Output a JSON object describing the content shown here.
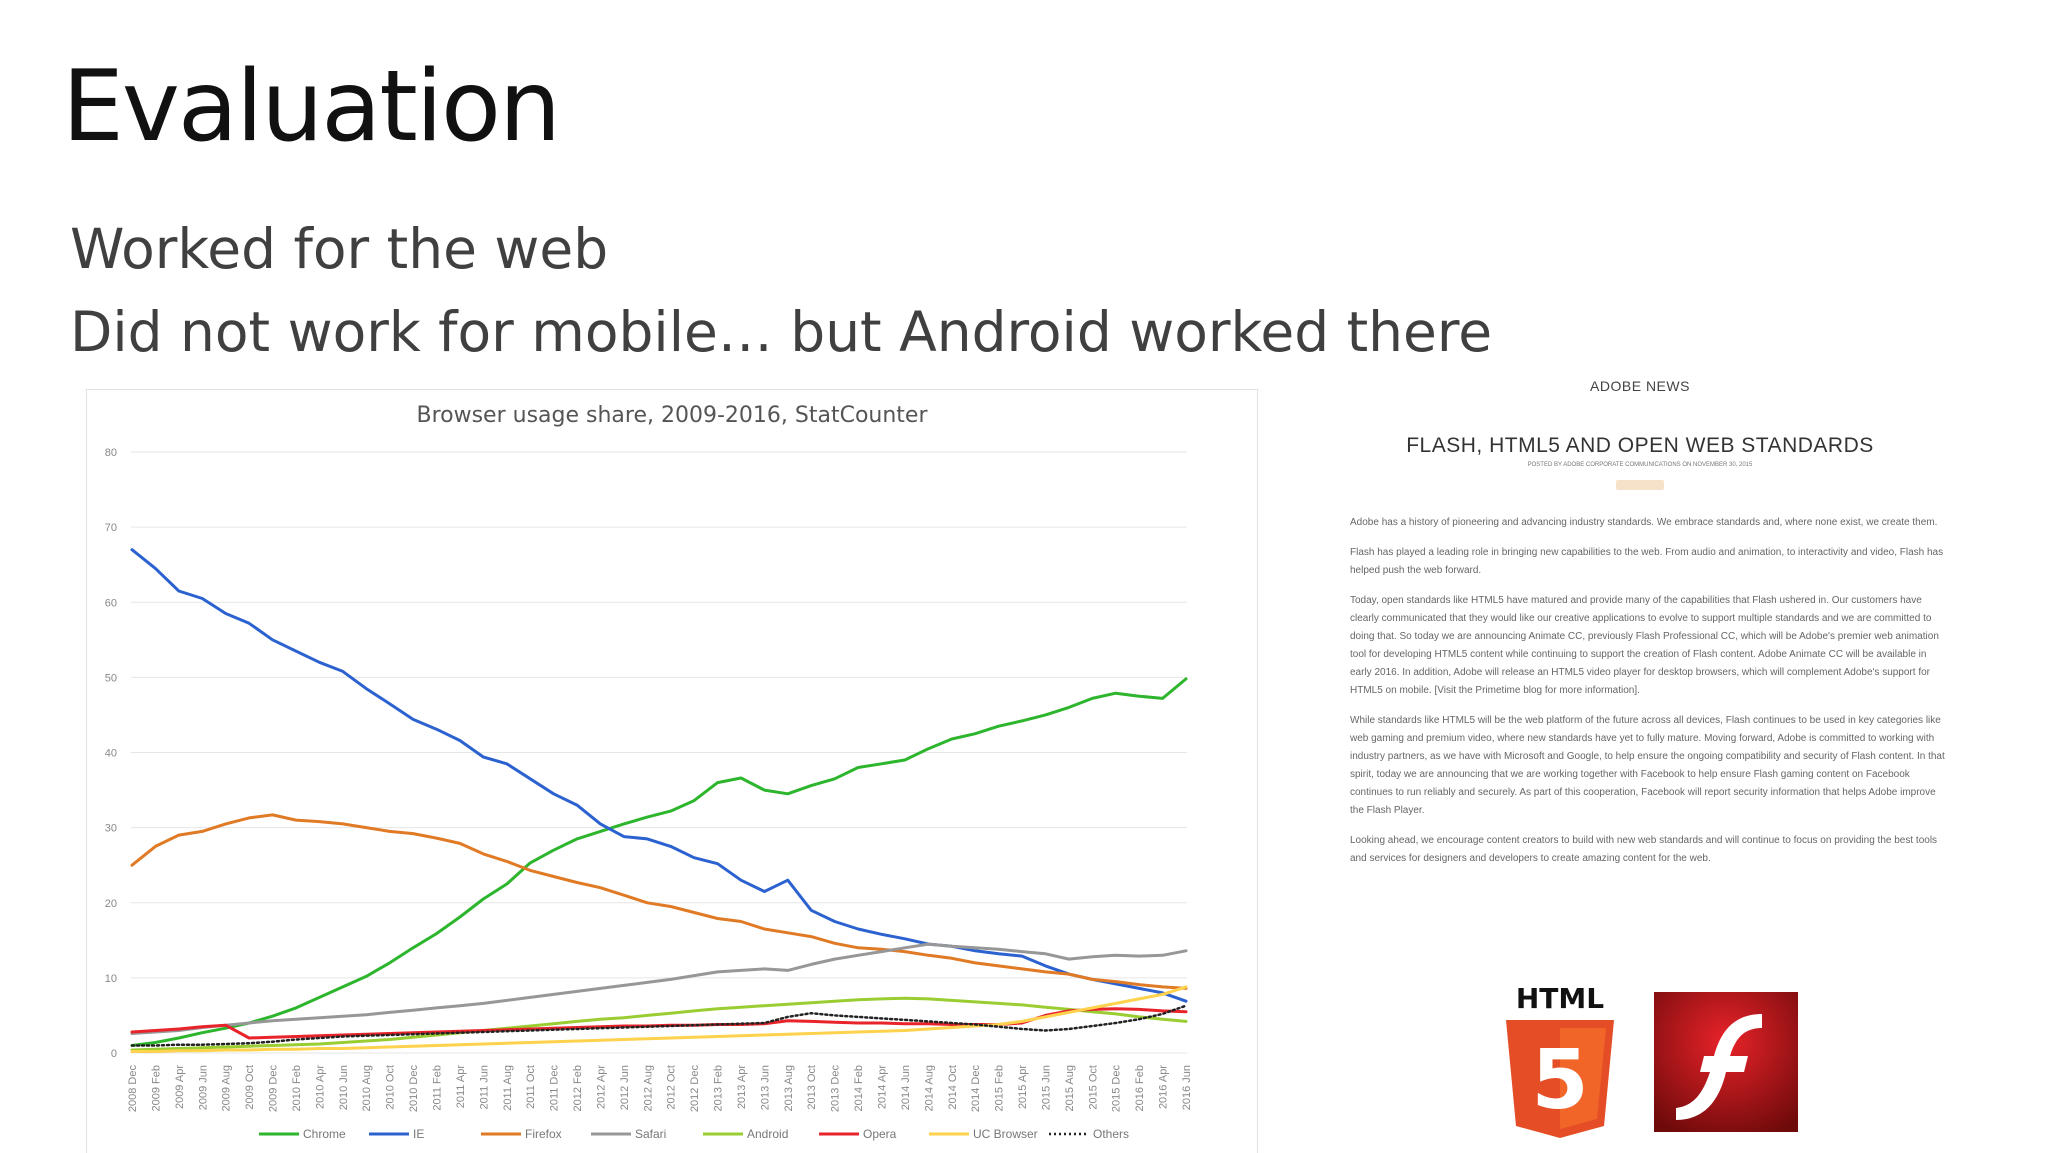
{
  "slide": {
    "title": "Evaluation",
    "bullets": [
      "Worked for the web",
      "Did not work for mobile… but Android worked there"
    ]
  },
  "chart_data": {
    "type": "line",
    "title": "Browser usage share, 2009-2016, StatCounter",
    "ylim": [
      0,
      80
    ],
    "y_ticks": [
      0,
      10,
      20,
      30,
      40,
      50,
      60,
      70,
      80
    ],
    "grid": true,
    "legend_position": "bottom",
    "x": [
      "2008 Dec",
      "2009 Feb",
      "2009 Apr",
      "2009 Jun",
      "2009 Aug",
      "2009 Oct",
      "2009 Dec",
      "2010 Feb",
      "2010 Apr",
      "2010 Jun",
      "2010 Aug",
      "2010 Oct",
      "2010 Dec",
      "2011 Feb",
      "2011 Apr",
      "2011 Jun",
      "2011 Aug",
      "2011 Oct",
      "2011 Dec",
      "2012 Feb",
      "2012 Apr",
      "2012 Jun",
      "2012 Aug",
      "2012 Oct",
      "2012 Dec",
      "2013 Feb",
      "2013 Apr",
      "2013 Jun",
      "2013 Aug",
      "2013 Oct",
      "2013 Dec",
      "2014 Feb",
      "2014 Apr",
      "2014 Jun",
      "2014 Aug",
      "2014 Oct",
      "2014 Dec",
      "2015 Feb",
      "2015 Apr",
      "2015 Jun",
      "2015 Aug",
      "2015 Oct",
      "2015 Dec",
      "2016 Feb",
      "2016 Apr",
      "2016 Jun"
    ],
    "series": [
      {
        "name": "Chrome",
        "color": "#2db52d",
        "dashed": false,
        "values": [
          1.0,
          1.4,
          2.0,
          2.7,
          3.3,
          4.0,
          4.9,
          6.0,
          7.4,
          8.8,
          10.2,
          12.0,
          14.0,
          15.9,
          18.1,
          20.5,
          22.5,
          25.3,
          27.0,
          28.5,
          29.5,
          30.5,
          31.4,
          32.2,
          33.6,
          36.0,
          36.6,
          35.0,
          34.5,
          35.6,
          36.5,
          38.0,
          38.5,
          39.0,
          40.5,
          41.8,
          42.5,
          43.5,
          44.2,
          45.0,
          46.0,
          47.2,
          47.9,
          47.5,
          47.2,
          49.8
        ]
      },
      {
        "name": "IE",
        "color": "#2c62d0",
        "dashed": false,
        "values": [
          67.0,
          64.5,
          61.5,
          60.5,
          58.5,
          57.2,
          55.0,
          53.5,
          52.0,
          50.8,
          48.5,
          46.5,
          44.4,
          43.1,
          41.6,
          39.4,
          38.5,
          36.5,
          34.5,
          33.0,
          30.5,
          28.8,
          28.5,
          27.5,
          26.0,
          25.2,
          23.0,
          21.5,
          23.0,
          19.0,
          17.5,
          16.5,
          15.8,
          15.2,
          14.5,
          14.2,
          13.6,
          13.2,
          12.9,
          11.6,
          10.5,
          9.8,
          9.2,
          8.6,
          8.0,
          6.9
        ]
      },
      {
        "name": "Firefox",
        "color": "#e07a25",
        "dashed": false,
        "values": [
          25.0,
          27.5,
          29.0,
          29.5,
          30.5,
          31.3,
          31.7,
          31.0,
          30.8,
          30.5,
          30.0,
          29.5,
          29.2,
          28.6,
          27.9,
          26.5,
          25.5,
          24.3,
          23.5,
          22.7,
          22.0,
          21.0,
          20.0,
          19.5,
          18.7,
          17.9,
          17.5,
          16.5,
          16.0,
          15.5,
          14.6,
          14.0,
          13.8,
          13.5,
          13.0,
          12.6,
          12.0,
          11.6,
          11.2,
          10.8,
          10.5,
          9.8,
          9.5,
          9.1,
          8.8,
          8.6
        ]
      },
      {
        "name": "Safari",
        "color": "#979797",
        "dashed": false,
        "values": [
          2.6,
          2.8,
          3.0,
          3.4,
          3.7,
          4.0,
          4.3,
          4.5,
          4.7,
          4.9,
          5.1,
          5.4,
          5.7,
          6.0,
          6.3,
          6.6,
          7.0,
          7.4,
          7.8,
          8.2,
          8.6,
          9.0,
          9.4,
          9.8,
          10.3,
          10.8,
          11.0,
          11.2,
          11.0,
          11.8,
          12.5,
          13.0,
          13.5,
          14.0,
          14.5,
          14.2,
          14.0,
          13.8,
          13.5,
          13.2,
          12.5,
          12.8,
          13.0,
          12.9,
          13.0,
          13.6
        ]
      },
      {
        "name": "Android",
        "color": "#9acd32",
        "dashed": false,
        "values": [
          0.4,
          0.5,
          0.6,
          0.7,
          0.8,
          0.9,
          1.0,
          1.1,
          1.2,
          1.4,
          1.6,
          1.8,
          2.1,
          2.4,
          2.7,
          3.0,
          3.3,
          3.6,
          3.9,
          4.2,
          4.5,
          4.7,
          5.0,
          5.3,
          5.6,
          5.9,
          6.1,
          6.3,
          6.5,
          6.7,
          6.9,
          7.1,
          7.2,
          7.3,
          7.2,
          7.0,
          6.8,
          6.6,
          6.4,
          6.1,
          5.8,
          5.5,
          5.2,
          4.8,
          4.5,
          4.2
        ]
      },
      {
        "name": "Opera",
        "color": "#e8232a",
        "dashed": false,
        "values": [
          2.8,
          3.0,
          3.2,
          3.5,
          3.7,
          2.0,
          2.1,
          2.2,
          2.3,
          2.4,
          2.5,
          2.6,
          2.7,
          2.8,
          2.9,
          3.0,
          3.1,
          3.2,
          3.3,
          3.4,
          3.5,
          3.6,
          3.6,
          3.7,
          3.7,
          3.8,
          3.8,
          3.9,
          4.3,
          4.2,
          4.1,
          4.0,
          4.0,
          3.9,
          3.9,
          3.8,
          3.8,
          3.8,
          4.0,
          5.0,
          5.6,
          5.8,
          5.9,
          5.8,
          5.6,
          5.5
        ]
      },
      {
        "name": "UC Browser",
        "color": "#ffd24d",
        "dashed": false,
        "values": [
          0.2,
          0.2,
          0.3,
          0.3,
          0.4,
          0.4,
          0.5,
          0.5,
          0.6,
          0.6,
          0.7,
          0.8,
          0.9,
          1.0,
          1.1,
          1.2,
          1.3,
          1.4,
          1.5,
          1.6,
          1.7,
          1.8,
          1.9,
          2.0,
          2.1,
          2.2,
          2.3,
          2.4,
          2.5,
          2.6,
          2.7,
          2.8,
          2.9,
          3.0,
          3.2,
          3.4,
          3.6,
          3.8,
          4.2,
          4.8,
          5.4,
          6.0,
          6.6,
          7.2,
          7.8,
          8.8
        ]
      },
      {
        "name": "Others",
        "color": "#222222",
        "dashed": true,
        "values": [
          1.0,
          1.0,
          1.1,
          1.1,
          1.2,
          1.3,
          1.5,
          1.8,
          2.0,
          2.2,
          2.3,
          2.4,
          2.5,
          2.6,
          2.7,
          2.8,
          2.9,
          3.0,
          3.1,
          3.2,
          3.3,
          3.4,
          3.5,
          3.6,
          3.7,
          3.8,
          3.9,
          4.0,
          4.8,
          5.3,
          5.0,
          4.8,
          4.6,
          4.4,
          4.2,
          4.0,
          3.8,
          3.5,
          3.2,
          3.0,
          3.2,
          3.6,
          4.0,
          4.5,
          5.2,
          6.3
        ]
      }
    ]
  },
  "news": {
    "label": "ADOBE NEWS",
    "title": "FLASH, HTML5 AND OPEN WEB STANDARDS",
    "byline": "POSTED BY ADOBE CORPORATE COMMUNICATIONS ON NOVEMBER 30, 2015",
    "paragraphs": [
      "Adobe has a history of pioneering and advancing industry standards. We embrace standards and, where none exist, we create them.",
      "Flash has played a leading role in bringing new capabilities to the web. From audio and animation, to interactivity and video, Flash has helped push the web forward.",
      "Today, open standards like HTML5 have matured and provide many of the capabilities that Flash ushered in. Our customers have clearly communicated that they would like our creative applications to evolve to support multiple standards and we are committed to doing that. So today we are announcing Animate CC, previously Flash Professional CC, which will be Adobe's premier web animation tool for developing HTML5 content while continuing to support the creation of Flash content. Adobe Animate CC will be available in early 2016. In addition, Adobe will release an HTML5 video player for desktop browsers, which will complement Adobe's support for HTML5 on mobile. [Visit the Primetime blog for more information].",
      "While standards like HTML5 will be the web platform of the future across all devices, Flash continues to be used in key categories like web gaming and premium video, where new standards have yet to fully mature. Moving forward, Adobe is committed to working with industry partners, as we have with Microsoft and Google, to help ensure the ongoing compatibility and security of Flash content. In that spirit, today we are announcing that we are working together with Facebook to help ensure Flash gaming content on Facebook continues to run reliably and securely. As part of this cooperation, Facebook will report security information that helps Adobe improve the Flash Player.",
      "Looking ahead, we encourage content creators to build with new web standards and will continue to focus on providing the best tools and services for designers and developers to create amazing content for the web."
    ]
  },
  "logos": {
    "html5_text": "HTML",
    "html5_number": "5"
  }
}
